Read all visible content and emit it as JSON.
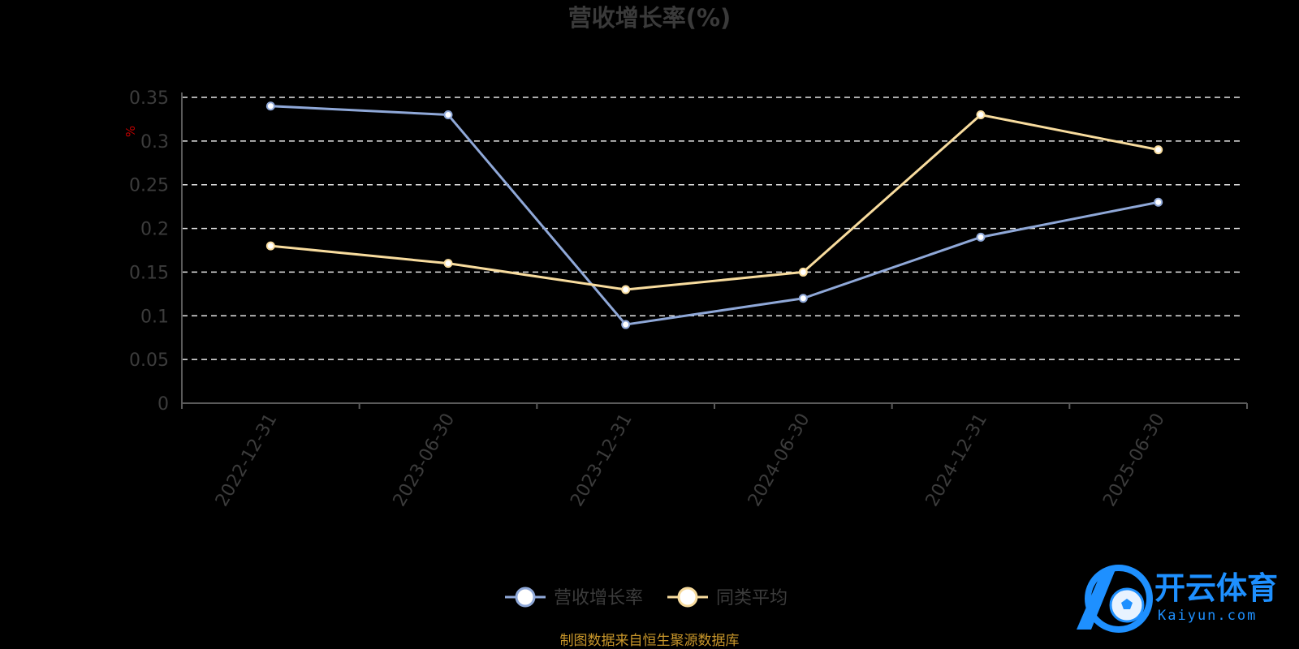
{
  "chart_data": {
    "type": "line",
    "title": "营收增长率(%)",
    "ylabel": "%",
    "ylim": [
      0,
      0.35
    ],
    "yticks": [
      "0",
      "0.05",
      "0.1",
      "0.15",
      "0.2",
      "0.25",
      "0.3",
      "0.35"
    ],
    "categories": [
      "2022-12-31",
      "2023-06-30",
      "2023-12-31",
      "2024-06-30",
      "2024-12-31",
      "2025-06-30"
    ],
    "series": [
      {
        "name": "营收增长率",
        "color": "#8fa8d8",
        "values": [
          0.34,
          0.33,
          0.09,
          0.12,
          0.19,
          0.23
        ]
      },
      {
        "name": "同类平均",
        "color": "#f8dc9e",
        "values": [
          0.18,
          0.16,
          0.13,
          0.15,
          0.33,
          0.29
        ]
      }
    ],
    "grid": true,
    "legend": "bottom-center",
    "source": "制图数据来自恒生聚源数据库"
  },
  "watermark": {
    "brand_cn": "开云体育",
    "brand_en": "Kaiyun.com",
    "color": "#1e90ff"
  }
}
